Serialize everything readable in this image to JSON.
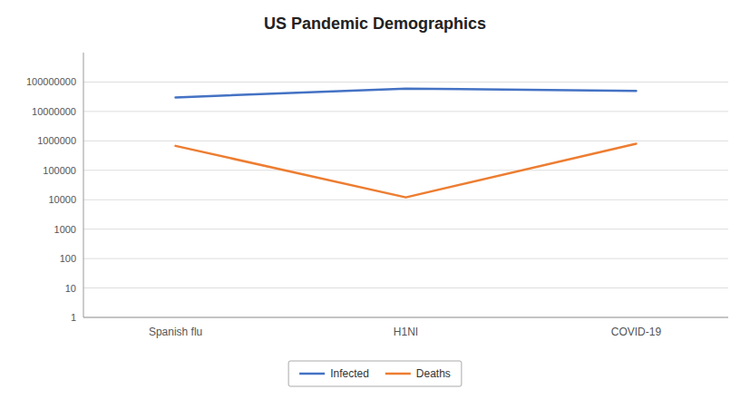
{
  "chart_data": {
    "type": "line",
    "title": "US Pandemic Demographics",
    "categories": [
      "Spanish flu",
      "H1NI",
      "COVID-19"
    ],
    "series": [
      {
        "name": "Infected",
        "color": "#4472C4",
        "values": [
          30000000,
          60000000,
          50000000
        ]
      },
      {
        "name": "Deaths",
        "color": "#ED7D31",
        "values": [
          675000,
          12000,
          800000
        ]
      }
    ],
    "ylim": [
      1,
      1000000000
    ],
    "yticks": [
      1,
      10,
      100,
      1000,
      10000,
      100000,
      1000000,
      10000000,
      100000000
    ],
    "log": "y",
    "grid": true,
    "legend": "bottom"
  }
}
